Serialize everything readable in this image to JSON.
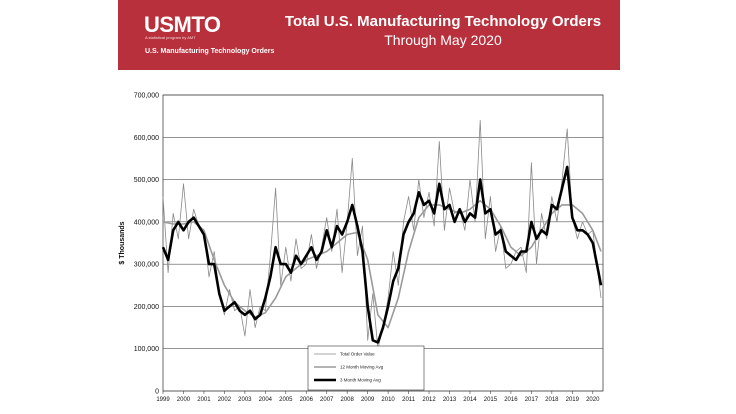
{
  "banner": {
    "logo": "USMTO",
    "logo_tagline": "A statistical program by AMT",
    "subtitle_left": "U.S. Manufacturing Technology Orders",
    "title": "Total U.S. Manufacturing Technology Orders",
    "subtitle": "Through May 2020",
    "color": "#b8303b"
  },
  "chart_data": {
    "type": "line",
    "ylabel": "$ Thousands",
    "xlabel": "",
    "ylim": [
      0,
      700000
    ],
    "yticks": [
      "0",
      "100,000",
      "200,000",
      "300,000",
      "400,000",
      "500,000",
      "600,000",
      "700,000"
    ],
    "xlim": [
      1999.0,
      2020.5
    ],
    "xticks": [
      "1999",
      "2000",
      "2001",
      "2002",
      "2003",
      "2004",
      "2005",
      "2006",
      "2007",
      "2008",
      "2009",
      "2010",
      "2011",
      "2012",
      "2013",
      "2014",
      "2015",
      "2016",
      "2017",
      "2018",
      "2019",
      "2020"
    ],
    "grid": "horizontal",
    "legend_position": "bottom-center",
    "series": [
      {
        "name": "Total Order Value",
        "color": "#8a8a8a",
        "style": "thin",
        "x": [
          1999.0,
          1999.25,
          1999.5,
          1999.75,
          2000.0,
          2000.25,
          2000.5,
          2000.75,
          2001.0,
          2001.25,
          2001.5,
          2001.75,
          2002.0,
          2002.25,
          2002.5,
          2002.75,
          2003.0,
          2003.25,
          2003.5,
          2003.75,
          2004.0,
          2004.25,
          2004.5,
          2004.75,
          2005.0,
          2005.25,
          2005.5,
          2005.75,
          2006.0,
          2006.25,
          2006.5,
          2006.75,
          2007.0,
          2007.25,
          2007.5,
          2007.75,
          2008.0,
          2008.25,
          2008.5,
          2008.75,
          2009.0,
          2009.25,
          2009.5,
          2009.75,
          2010.0,
          2010.25,
          2010.5,
          2010.75,
          2011.0,
          2011.25,
          2011.5,
          2011.75,
          2012.0,
          2012.25,
          2012.5,
          2012.75,
          2013.0,
          2013.25,
          2013.5,
          2013.75,
          2014.0,
          2014.25,
          2014.5,
          2014.75,
          2015.0,
          2015.25,
          2015.5,
          2015.75,
          2016.0,
          2016.25,
          2016.5,
          2016.75,
          2017.0,
          2017.25,
          2017.5,
          2017.75,
          2018.0,
          2018.25,
          2018.5,
          2018.75,
          2019.0,
          2019.25,
          2019.5,
          2019.75,
          2020.0,
          2020.2,
          2020.4
        ],
        "y": [
          460000,
          280000,
          420000,
          360000,
          490000,
          360000,
          430000,
          390000,
          380000,
          270000,
          330000,
          230000,
          180000,
          240000,
          190000,
          200000,
          130000,
          240000,
          150000,
          200000,
          190000,
          320000,
          480000,
          250000,
          340000,
          260000,
          360000,
          290000,
          300000,
          370000,
          290000,
          340000,
          410000,
          330000,
          430000,
          280000,
          400000,
          550000,
          320000,
          390000,
          120000,
          230000,
          100000,
          150000,
          220000,
          330000,
          250000,
          400000,
          460000,
          380000,
          500000,
          410000,
          470000,
          390000,
          590000,
          380000,
          480000,
          420000,
          430000,
          380000,
          500000,
          400000,
          640000,
          360000,
          460000,
          330000,
          390000,
          290000,
          300000,
          330000,
          340000,
          280000,
          540000,
          300000,
          420000,
          360000,
          460000,
          400000,
          500000,
          620000,
          410000,
          360000,
          400000,
          370000,
          380000,
          300000,
          220000
        ]
      },
      {
        "name": "12 Month Moving Avg",
        "color": "#9a9a9a",
        "style": "medium",
        "x": [
          1999.0,
          1999.5,
          2000.0,
          2000.5,
          2001.0,
          2001.5,
          2002.0,
          2002.5,
          2003.0,
          2003.5,
          2004.0,
          2004.5,
          2005.0,
          2005.5,
          2006.0,
          2006.5,
          2007.0,
          2007.5,
          2008.0,
          2008.5,
          2009.0,
          2009.5,
          2010.0,
          2010.5,
          2011.0,
          2011.5,
          2012.0,
          2012.5,
          2013.0,
          2013.5,
          2014.0,
          2014.5,
          2015.0,
          2015.5,
          2016.0,
          2016.5,
          2017.0,
          2017.5,
          2018.0,
          2018.5,
          2019.0,
          2019.5,
          2020.0,
          2020.4
        ],
        "y": [
          400000,
          395000,
          395000,
          400000,
          380000,
          310000,
          250000,
          210000,
          190000,
          175000,
          185000,
          220000,
          270000,
          290000,
          310000,
          320000,
          330000,
          350000,
          370000,
          375000,
          310000,
          180000,
          150000,
          220000,
          330000,
          410000,
          440000,
          440000,
          430000,
          420000,
          430000,
          450000,
          430000,
          390000,
          340000,
          320000,
          340000,
          380000,
          420000,
          440000,
          440000,
          420000,
          380000,
          330000
        ]
      },
      {
        "name": "3 Month Moving Avg",
        "color": "#000000",
        "style": "thick",
        "x": [
          1999.0,
          1999.25,
          1999.5,
          1999.75,
          2000.0,
          2000.25,
          2000.5,
          2000.75,
          2001.0,
          2001.25,
          2001.5,
          2001.75,
          2002.0,
          2002.25,
          2002.5,
          2002.75,
          2003.0,
          2003.25,
          2003.5,
          2003.75,
          2004.0,
          2004.25,
          2004.5,
          2004.75,
          2005.0,
          2005.25,
          2005.5,
          2005.75,
          2006.0,
          2006.25,
          2006.5,
          2006.75,
          2007.0,
          2007.25,
          2007.5,
          2007.75,
          2008.0,
          2008.25,
          2008.5,
          2008.75,
          2009.0,
          2009.25,
          2009.5,
          2009.75,
          2010.0,
          2010.25,
          2010.5,
          2010.75,
          2011.0,
          2011.25,
          2011.5,
          2011.75,
          2012.0,
          2012.25,
          2012.5,
          2012.75,
          2013.0,
          2013.25,
          2013.5,
          2013.75,
          2014.0,
          2014.25,
          2014.5,
          2014.75,
          2015.0,
          2015.25,
          2015.5,
          2015.75,
          2016.0,
          2016.25,
          2016.5,
          2016.75,
          2017.0,
          2017.25,
          2017.5,
          2017.75,
          2018.0,
          2018.25,
          2018.5,
          2018.75,
          2019.0,
          2019.25,
          2019.5,
          2019.75,
          2020.0,
          2020.2,
          2020.4
        ],
        "y": [
          340000,
          310000,
          380000,
          400000,
          380000,
          400000,
          410000,
          390000,
          370000,
          300000,
          300000,
          230000,
          190000,
          200000,
          210000,
          190000,
          180000,
          190000,
          170000,
          180000,
          220000,
          270000,
          340000,
          300000,
          300000,
          280000,
          320000,
          300000,
          320000,
          340000,
          310000,
          330000,
          380000,
          340000,
          390000,
          370000,
          400000,
          440000,
          390000,
          330000,
          200000,
          120000,
          115000,
          150000,
          200000,
          260000,
          290000,
          370000,
          400000,
          420000,
          470000,
          440000,
          450000,
          420000,
          490000,
          430000,
          440000,
          400000,
          430000,
          400000,
          420000,
          410000,
          500000,
          420000,
          430000,
          370000,
          380000,
          330000,
          320000,
          310000,
          330000,
          330000,
          400000,
          360000,
          380000,
          370000,
          440000,
          430000,
          480000,
          530000,
          410000,
          380000,
          380000,
          370000,
          350000,
          300000,
          250000
        ]
      }
    ]
  }
}
